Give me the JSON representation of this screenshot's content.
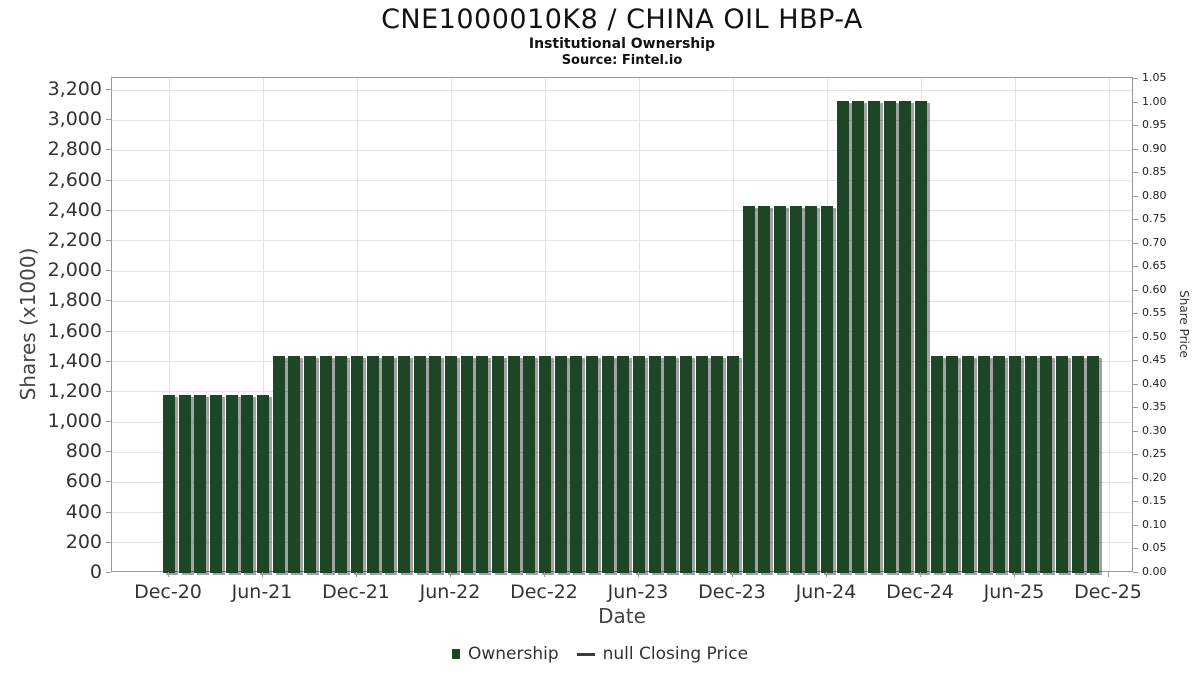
{
  "chart_data": {
    "type": "bar",
    "title": "CNE1000010K8 / CHINA OIL HBP-A",
    "subtitle": "Institutional Ownership",
    "source_note": "Source: Fintel.io",
    "xlabel": "Date",
    "ylabel_left": "Shares (x1000)",
    "ylabel_right": "Share Price",
    "grid": true,
    "legend_position": "bottom",
    "colors": {
      "bar": "#1d4627",
      "legend_line": "#3a3a3a",
      "grid": "#e4e4e4",
      "axis": "#9a9a9a"
    },
    "x_axis": {
      "tick_labels": [
        "Dec-20",
        "Jun-21",
        "Dec-21",
        "Jun-22",
        "Dec-22",
        "Jun-23",
        "Dec-23",
        "Jun-24",
        "Dec-24",
        "Jun-25",
        "Dec-25"
      ],
      "months_between_ticks": 6
    },
    "y_left": {
      "tick_labels": [
        "0",
        "200",
        "400",
        "600",
        "800",
        "1,000",
        "1,200",
        "1,400",
        "1,600",
        "1,800",
        "2,000",
        "2,200",
        "2,400",
        "2,600",
        "2,800",
        "3,000",
        "3,200"
      ],
      "tick_step": 200,
      "axis_max": 3280
    },
    "y_right": {
      "tick_labels": [
        "0.00",
        "0.05",
        "0.10",
        "0.15",
        "0.20",
        "0.25",
        "0.30",
        "0.35",
        "0.40",
        "0.45",
        "0.50",
        "0.55",
        "0.60",
        "0.65",
        "0.70",
        "0.75",
        "0.80",
        "0.85",
        "0.90",
        "0.95",
        "1.00",
        "1.05"
      ],
      "tick_step": 0.05,
      "axis_max": 1.053
    },
    "series": [
      {
        "name": "Ownership",
        "months": [
          "Dec-20",
          "Jan-21",
          "Feb-21",
          "Mar-21",
          "Apr-21",
          "May-21",
          "Jun-21",
          "Jul-21",
          "Aug-21",
          "Sep-21",
          "Oct-21",
          "Nov-21",
          "Dec-21",
          "Jan-22",
          "Feb-22",
          "Mar-22",
          "Apr-22",
          "May-22",
          "Jun-22",
          "Jul-22",
          "Aug-22",
          "Sep-22",
          "Oct-22",
          "Nov-22",
          "Dec-22",
          "Jan-23",
          "Feb-23",
          "Mar-23",
          "Apr-23",
          "May-23",
          "Jun-23",
          "Jul-23",
          "Aug-23",
          "Sep-23",
          "Oct-23",
          "Nov-23",
          "Dec-23",
          "Jan-24",
          "Feb-24",
          "Mar-24",
          "Apr-24",
          "May-24",
          "Jun-24",
          "Jul-24",
          "Aug-24",
          "Sep-24",
          "Oct-24",
          "Nov-24",
          "Dec-24",
          "Jan-25",
          "Feb-25",
          "Mar-25",
          "Apr-25",
          "May-25",
          "Jun-25",
          "Jul-25",
          "Aug-25",
          "Sep-25",
          "Oct-25",
          "Nov-25"
        ],
        "values": [
          1180,
          1180,
          1180,
          1180,
          1180,
          1180,
          1180,
          1440,
          1440,
          1440,
          1440,
          1440,
          1440,
          1440,
          1440,
          1440,
          1440,
          1440,
          1440,
          1440,
          1440,
          1440,
          1440,
          1440,
          1440,
          1440,
          1440,
          1440,
          1440,
          1440,
          1440,
          1440,
          1440,
          1440,
          1440,
          1440,
          1440,
          2430,
          2430,
          2430,
          2430,
          2430,
          2430,
          3130,
          3130,
          3130,
          3130,
          3130,
          3130,
          1440,
          1440,
          1440,
          1440,
          1440,
          1440,
          1440,
          1440,
          1440,
          1440,
          1440
        ]
      }
    ],
    "legend": [
      {
        "label": "Ownership",
        "marker": "square"
      },
      {
        "label": "null Closing Price",
        "marker": "line"
      }
    ]
  }
}
